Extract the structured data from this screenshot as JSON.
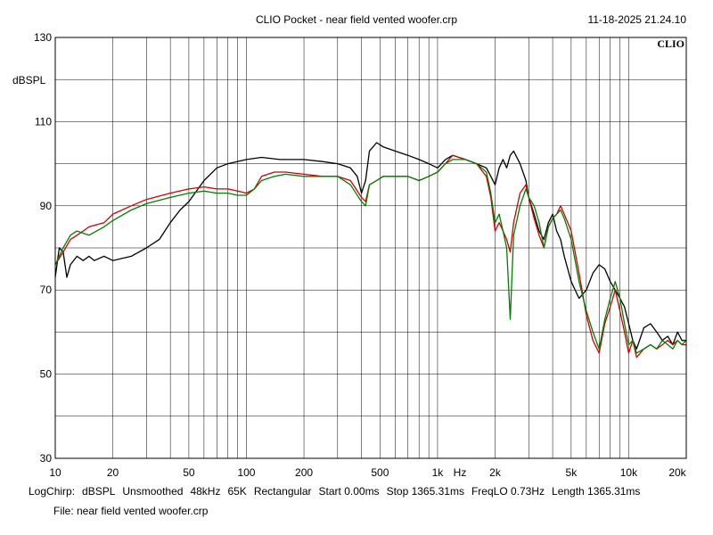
{
  "header": {
    "title": "CLIO Pocket - near field vented woofer.crp",
    "datetime": "11-18-2025 21.24.10",
    "logo": "CLIO"
  },
  "chart_data": {
    "type": "line",
    "ylabel": "dBSPL",
    "xlabel": "Hz",
    "xscale": "log",
    "xlim": [
      10,
      20000
    ],
    "ylim": [
      30,
      130
    ],
    "grid": true,
    "y_tick_labels": [
      {
        "v": 130,
        "t": "130"
      },
      {
        "v": 110,
        "t": "110"
      },
      {
        "v": 90,
        "t": "90"
      },
      {
        "v": 70,
        "t": "70"
      },
      {
        "v": 50,
        "t": "50"
      },
      {
        "v": 30,
        "t": "30"
      }
    ],
    "x_tick_labels": [
      {
        "v": 10,
        "t": "10"
      },
      {
        "v": 20,
        "t": "20"
      },
      {
        "v": 50,
        "t": "50"
      },
      {
        "v": 100,
        "t": "100"
      },
      {
        "v": 200,
        "t": "200"
      },
      {
        "v": 500,
        "t": "500"
      },
      {
        "v": 1000,
        "t": "1k"
      },
      {
        "v": 2000,
        "t": "2k"
      },
      {
        "v": 5000,
        "t": "5k"
      },
      {
        "v": 10000,
        "t": "10k"
      },
      {
        "v": 20000,
        "t": "20k"
      }
    ],
    "series": [
      {
        "color": "#000000",
        "points": [
          [
            10,
            73
          ],
          [
            10.5,
            80
          ],
          [
            11,
            79
          ],
          [
            11.5,
            73
          ],
          [
            12,
            76
          ],
          [
            13,
            78
          ],
          [
            14,
            77
          ],
          [
            15,
            78
          ],
          [
            16,
            77
          ],
          [
            18,
            78
          ],
          [
            20,
            77
          ],
          [
            25,
            78
          ],
          [
            30,
            80
          ],
          [
            35,
            82
          ],
          [
            40,
            86
          ],
          [
            45,
            89
          ],
          [
            50,
            91
          ],
          [
            60,
            96
          ],
          [
            70,
            99
          ],
          [
            80,
            100
          ],
          [
            100,
            101
          ],
          [
            120,
            101.5
          ],
          [
            150,
            101
          ],
          [
            200,
            101
          ],
          [
            250,
            100.5
          ],
          [
            300,
            100
          ],
          [
            350,
            99
          ],
          [
            380,
            97
          ],
          [
            400,
            93
          ],
          [
            420,
            96
          ],
          [
            440,
            103
          ],
          [
            480,
            105
          ],
          [
            520,
            104
          ],
          [
            600,
            103
          ],
          [
            700,
            102
          ],
          [
            800,
            101
          ],
          [
            900,
            100
          ],
          [
            1000,
            99
          ],
          [
            1100,
            101
          ],
          [
            1200,
            102
          ],
          [
            1400,
            101
          ],
          [
            1600,
            100
          ],
          [
            1800,
            99
          ],
          [
            1900,
            97
          ],
          [
            2000,
            95
          ],
          [
            2100,
            99
          ],
          [
            2200,
            101
          ],
          [
            2300,
            99
          ],
          [
            2400,
            102
          ],
          [
            2500,
            103
          ],
          [
            2700,
            100
          ],
          [
            2900,
            96
          ],
          [
            3000,
            92
          ],
          [
            3200,
            88
          ],
          [
            3400,
            84
          ],
          [
            3600,
            82
          ],
          [
            3800,
            86
          ],
          [
            4000,
            88
          ],
          [
            4200,
            84
          ],
          [
            4400,
            82
          ],
          [
            4600,
            78
          ],
          [
            5000,
            72
          ],
          [
            5500,
            68
          ],
          [
            6000,
            70
          ],
          [
            6500,
            74
          ],
          [
            7000,
            76
          ],
          [
            7500,
            75
          ],
          [
            8000,
            72
          ],
          [
            8500,
            70
          ],
          [
            9000,
            68
          ],
          [
            9500,
            66
          ],
          [
            10000,
            62
          ],
          [
            10500,
            58
          ],
          [
            11000,
            56
          ],
          [
            12000,
            61
          ],
          [
            13000,
            62
          ],
          [
            14000,
            60
          ],
          [
            15000,
            58
          ],
          [
            16000,
            59
          ],
          [
            17000,
            57
          ],
          [
            18000,
            60
          ],
          [
            19000,
            58
          ],
          [
            20000,
            58
          ]
        ]
      },
      {
        "color": "#d00000",
        "points": [
          [
            10,
            76
          ],
          [
            11,
            79
          ],
          [
            12,
            82
          ],
          [
            13,
            83
          ],
          [
            14,
            84
          ],
          [
            15,
            85
          ],
          [
            18,
            86
          ],
          [
            20,
            88
          ],
          [
            25,
            90
          ],
          [
            30,
            91.5
          ],
          [
            40,
            93
          ],
          [
            50,
            94
          ],
          [
            60,
            94.5
          ],
          [
            70,
            94
          ],
          [
            80,
            94
          ],
          [
            90,
            93.5
          ],
          [
            100,
            93
          ],
          [
            110,
            94
          ],
          [
            120,
            97
          ],
          [
            140,
            98
          ],
          [
            160,
            98
          ],
          [
            200,
            97.5
          ],
          [
            250,
            97
          ],
          [
            300,
            97
          ],
          [
            350,
            96
          ],
          [
            400,
            92
          ],
          [
            420,
            91
          ],
          [
            440,
            95
          ],
          [
            480,
            96
          ],
          [
            520,
            97
          ],
          [
            600,
            97
          ],
          [
            700,
            97
          ],
          [
            800,
            96
          ],
          [
            900,
            97
          ],
          [
            1000,
            98
          ],
          [
            1100,
            100
          ],
          [
            1200,
            102
          ],
          [
            1400,
            101
          ],
          [
            1600,
            100
          ],
          [
            1800,
            97
          ],
          [
            1900,
            92
          ],
          [
            2000,
            84
          ],
          [
            2100,
            86
          ],
          [
            2200,
            84
          ],
          [
            2300,
            82
          ],
          [
            2400,
            79
          ],
          [
            2500,
            86
          ],
          [
            2700,
            93
          ],
          [
            2900,
            95
          ],
          [
            3000,
            92
          ],
          [
            3200,
            87
          ],
          [
            3400,
            83
          ],
          [
            3600,
            80
          ],
          [
            3800,
            85
          ],
          [
            4000,
            87
          ],
          [
            4200,
            88
          ],
          [
            4400,
            90
          ],
          [
            4600,
            88
          ],
          [
            5000,
            84
          ],
          [
            5500,
            74
          ],
          [
            6000,
            64
          ],
          [
            6500,
            58
          ],
          [
            7000,
            55
          ],
          [
            7500,
            62
          ],
          [
            8000,
            66
          ],
          [
            8500,
            70
          ],
          [
            9000,
            65
          ],
          [
            9500,
            60
          ],
          [
            10000,
            55
          ],
          [
            10500,
            58
          ],
          [
            11000,
            54
          ],
          [
            12000,
            56
          ],
          [
            13000,
            57
          ],
          [
            14000,
            56
          ],
          [
            15000,
            57
          ],
          [
            16000,
            58
          ],
          [
            17000,
            57
          ],
          [
            18000,
            58
          ],
          [
            19000,
            57
          ],
          [
            20000,
            57
          ]
        ]
      },
      {
        "color": "#008000",
        "points": [
          [
            10,
            76
          ],
          [
            11,
            80
          ],
          [
            12,
            83
          ],
          [
            13,
            84
          ],
          [
            14,
            83.5
          ],
          [
            15,
            83
          ],
          [
            18,
            85
          ],
          [
            20,
            86.5
          ],
          [
            25,
            89
          ],
          [
            30,
            90.5
          ],
          [
            40,
            92
          ],
          [
            50,
            93
          ],
          [
            60,
            93.5
          ],
          [
            70,
            93
          ],
          [
            80,
            93
          ],
          [
            90,
            92.5
          ],
          [
            100,
            92.5
          ],
          [
            110,
            94
          ],
          [
            120,
            96
          ],
          [
            140,
            97
          ],
          [
            160,
            97.5
          ],
          [
            200,
            97
          ],
          [
            250,
            97
          ],
          [
            300,
            97
          ],
          [
            350,
            95
          ],
          [
            400,
            91
          ],
          [
            420,
            90
          ],
          [
            440,
            95
          ],
          [
            480,
            96
          ],
          [
            520,
            97
          ],
          [
            600,
            97
          ],
          [
            700,
            97
          ],
          [
            800,
            96
          ],
          [
            900,
            97
          ],
          [
            1000,
            98
          ],
          [
            1100,
            100
          ],
          [
            1200,
            101
          ],
          [
            1400,
            101
          ],
          [
            1600,
            100
          ],
          [
            1800,
            98
          ],
          [
            1900,
            93
          ],
          [
            2000,
            86
          ],
          [
            2100,
            88
          ],
          [
            2200,
            84
          ],
          [
            2300,
            80
          ],
          [
            2400,
            63
          ],
          [
            2500,
            83
          ],
          [
            2700,
            90
          ],
          [
            2900,
            94
          ],
          [
            3000,
            92
          ],
          [
            3200,
            90
          ],
          [
            3400,
            86
          ],
          [
            3600,
            80
          ],
          [
            3800,
            85
          ],
          [
            4000,
            87
          ],
          [
            4200,
            88
          ],
          [
            4400,
            89
          ],
          [
            4600,
            87
          ],
          [
            5000,
            82
          ],
          [
            5500,
            72
          ],
          [
            6000,
            65
          ],
          [
            6500,
            60
          ],
          [
            7000,
            56
          ],
          [
            7500,
            63
          ],
          [
            8000,
            68
          ],
          [
            8500,
            72
          ],
          [
            9000,
            68
          ],
          [
            9500,
            62
          ],
          [
            10000,
            57
          ],
          [
            10500,
            58
          ],
          [
            11000,
            55
          ],
          [
            12000,
            56
          ],
          [
            13000,
            57
          ],
          [
            14000,
            56
          ],
          [
            15000,
            58
          ],
          [
            16000,
            57
          ],
          [
            17000,
            56
          ],
          [
            18000,
            58
          ],
          [
            19000,
            57
          ],
          [
            20000,
            58
          ]
        ]
      }
    ]
  },
  "footer": {
    "line1": [
      "LogChirp:",
      "dBSPL",
      "Unsmoothed",
      "48kHz",
      "65K",
      "Rectangular",
      "Start 0.00ms",
      "Stop 1365.31ms",
      "FreqLO 0.73Hz",
      "Length 1365.31ms"
    ],
    "line2": "File: near field vented woofer.crp"
  }
}
